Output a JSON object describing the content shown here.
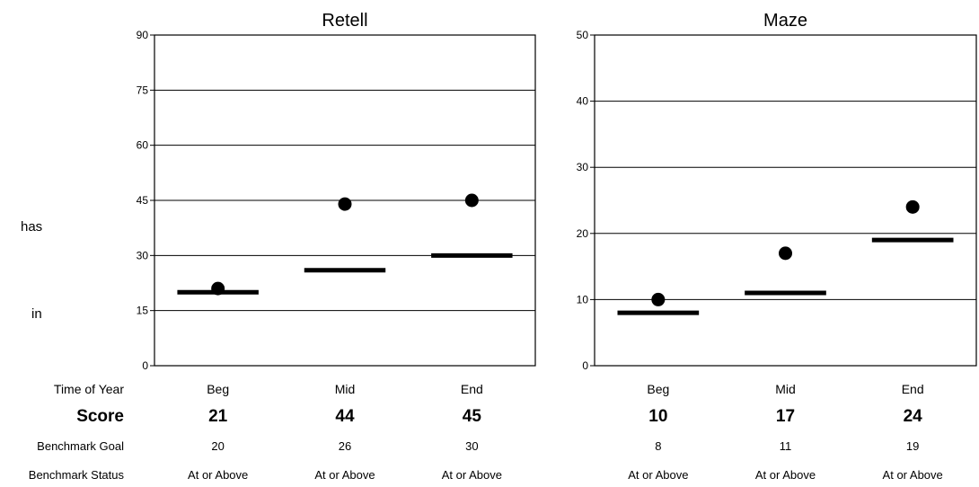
{
  "fragments": {
    "left_1": "has",
    "left_2": "in"
  },
  "row_labels": {
    "time_of_year": "Time of Year",
    "score": "Score",
    "benchmark_goal": "Benchmark Goal",
    "benchmark_status": "Benchmark Status"
  },
  "chart_data": [
    {
      "type": "scatter",
      "title": "Retell",
      "categories": [
        "Beg",
        "Mid",
        "End"
      ],
      "ylim": [
        0,
        90
      ],
      "yticks": [
        0,
        15,
        30,
        45,
        60,
        75,
        90
      ],
      "grid": true,
      "series": [
        {
          "name": "Score",
          "values": [
            21,
            44,
            45
          ],
          "marker": "dot"
        },
        {
          "name": "Benchmark Goal",
          "values": [
            20,
            26,
            30
          ],
          "marker": "bar"
        }
      ],
      "status": [
        "At or Above",
        "At or Above",
        "At or Above"
      ]
    },
    {
      "type": "scatter",
      "title": "Maze",
      "categories": [
        "Beg",
        "Mid",
        "End"
      ],
      "ylim": [
        0,
        50
      ],
      "yticks": [
        0,
        10,
        20,
        30,
        40,
        50
      ],
      "grid": true,
      "series": [
        {
          "name": "Score",
          "values": [
            10,
            17,
            24
          ],
          "marker": "dot"
        },
        {
          "name": "Benchmark Goal",
          "values": [
            8,
            11,
            19
          ],
          "marker": "bar"
        }
      ],
      "status": [
        "At or Above",
        "At or Above",
        "At or Above"
      ]
    }
  ],
  "colors": {
    "marks": "#000000",
    "grid": "#000000",
    "background": "#ffffff"
  }
}
